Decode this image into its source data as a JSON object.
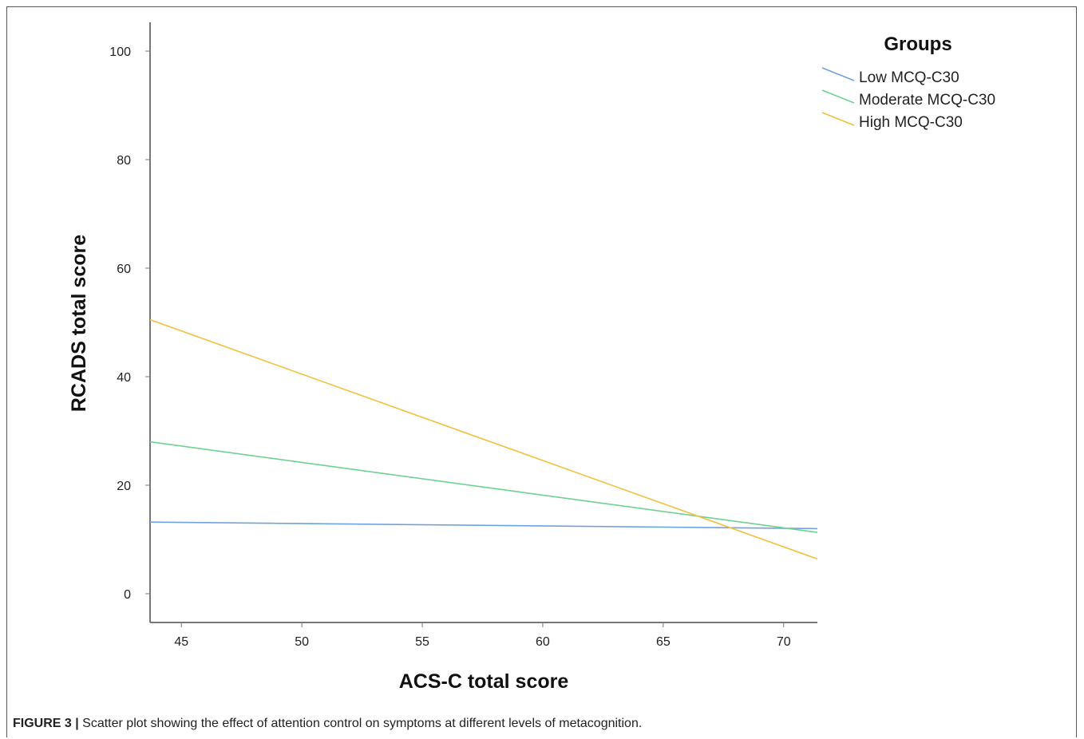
{
  "chart_data": {
    "type": "line",
    "title": "",
    "xlabel": "ACS-C total score",
    "ylabel": "RCADS total score",
    "xlim": [
      43.7,
      71.4
    ],
    "ylim": [
      -5.3,
      105.3
    ],
    "x_ticks": [
      45,
      50,
      55,
      60,
      65,
      70
    ],
    "y_ticks": [
      0,
      20,
      40,
      60,
      80,
      100
    ],
    "grid": false,
    "legend": {
      "title": "Groups",
      "position": "top-right"
    },
    "series": [
      {
        "name": "Low MCQ-C30",
        "color": "#6fa3e0",
        "x": [
          43.7,
          71.4
        ],
        "y": [
          13.2,
          12.0
        ]
      },
      {
        "name": "Moderate MCQ-C30",
        "color": "#6ed192",
        "x": [
          43.7,
          71.4
        ],
        "y": [
          28.0,
          11.3
        ]
      },
      {
        "name": "High MCQ-C30",
        "color": "#f0c13e",
        "x": [
          43.7,
          71.4
        ],
        "y": [
          50.5,
          6.4
        ]
      }
    ]
  },
  "caption": {
    "label": "FIGURE 3 |",
    "text": " Scatter plot showing the effect of attention control on symptoms at different levels of metacognition."
  }
}
